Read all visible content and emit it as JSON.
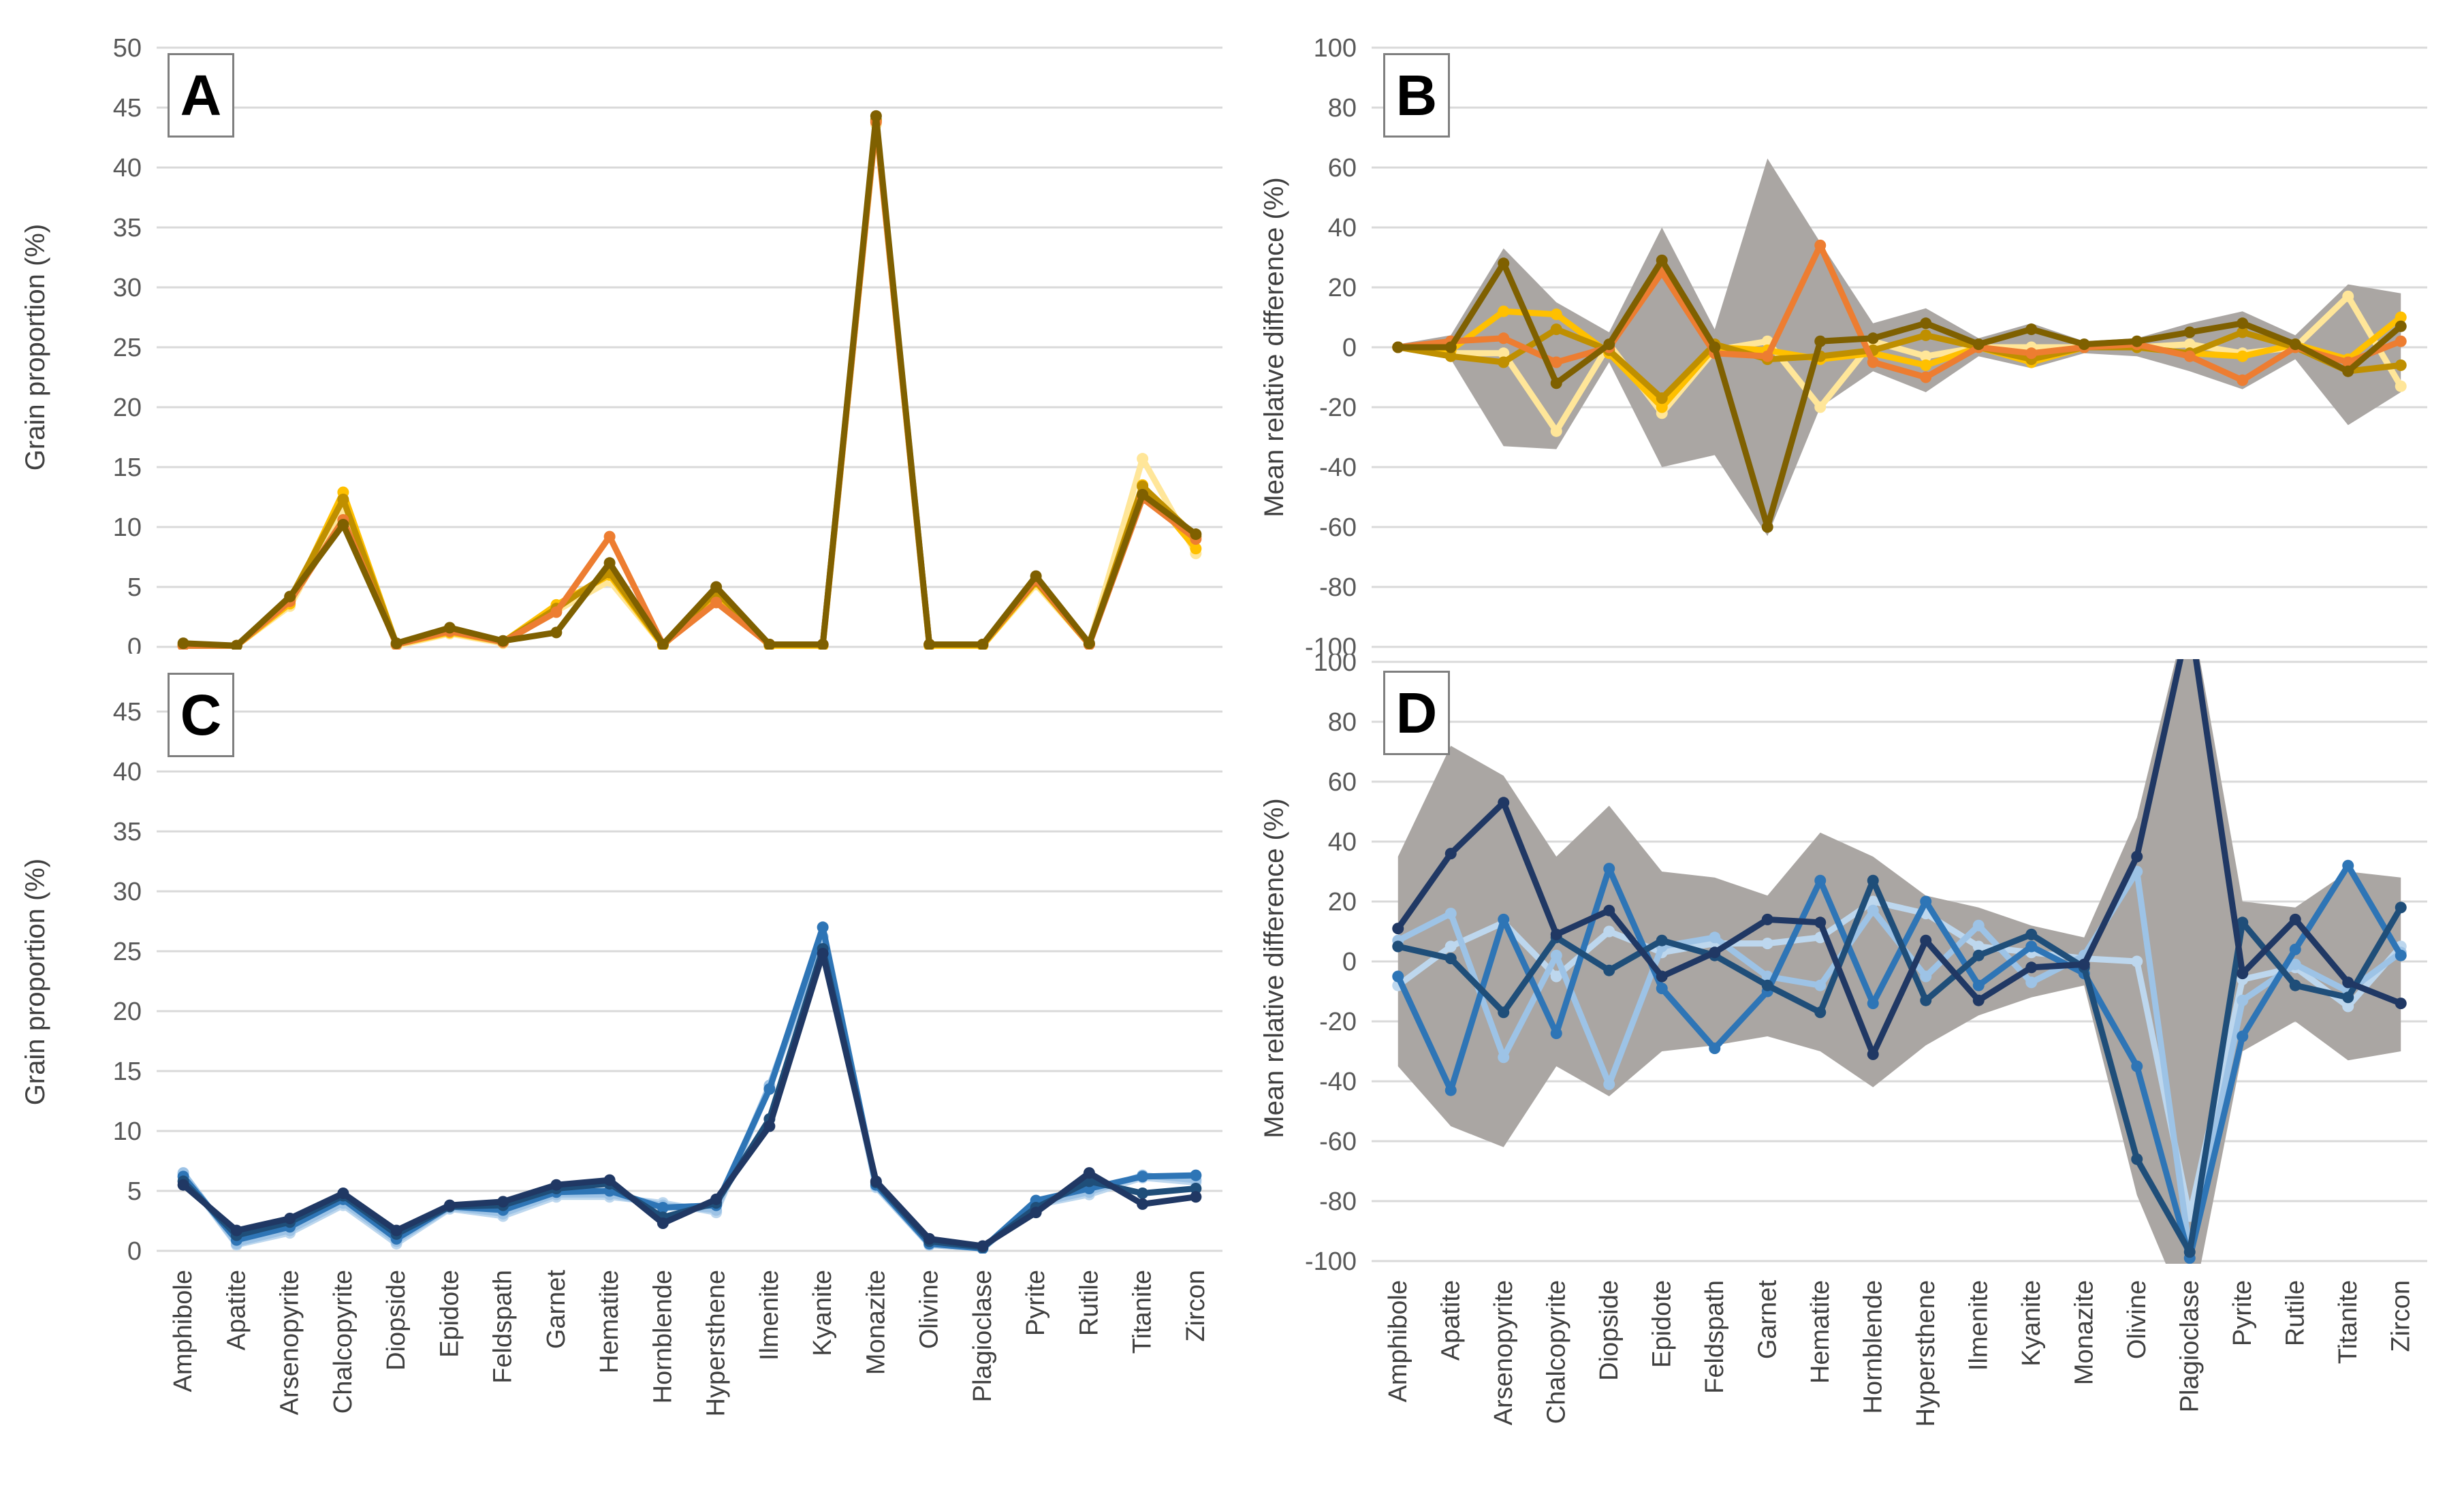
{
  "figure": {
    "background": "#ffffff",
    "gridline_color": "#d9d9d9",
    "tick_label_color": "#595959",
    "category_label_color": "#404040",
    "band_color": "#aaa6a3"
  },
  "categories": [
    "Amphibole",
    "Apatite",
    "Arsenopyrite",
    "Chalcopyrite",
    "Diopside",
    "Epidote",
    "Feldspath",
    "Garnet",
    "Hematite",
    "Hornblende",
    "Hypersthene",
    "Ilmenite",
    "Kyanite",
    "Monazite",
    "Olivine",
    "Plagioclase",
    "Pyrite",
    "Rutile",
    "Titanite",
    "Zircon"
  ],
  "chart_data": [
    {
      "type": "line",
      "panel_label": "A",
      "ylabel": "Grain proportion (%)",
      "ylim": [
        0,
        50
      ],
      "yticks": [
        0,
        5,
        10,
        15,
        20,
        25,
        30,
        35,
        40,
        45,
        50
      ],
      "grid": true,
      "legend_position": "none",
      "series": [
        {
          "name": "pale-yellow",
          "color": "#FFE699",
          "values": [
            0.1,
            0.1,
            3.4,
            11.4,
            0.1,
            1.1,
            0.3,
            3.0,
            5.5,
            0.1,
            4.2,
            0.1,
            0.1,
            43.6,
            0.1,
            0.1,
            5.2,
            0.2,
            15.7,
            7.8
          ]
        },
        {
          "name": "gold",
          "color": "#FFC000",
          "values": [
            0.1,
            0.1,
            3.6,
            12.9,
            0.2,
            1.2,
            0.4,
            3.5,
            6.0,
            0.1,
            4.5,
            0.1,
            0.1,
            43.9,
            0.1,
            0.1,
            5.4,
            0.2,
            13.5,
            8.2
          ]
        },
        {
          "name": "mustard",
          "color": "#BF8F00",
          "values": [
            0.1,
            0.1,
            4.0,
            12.3,
            0.2,
            1.4,
            0.4,
            3.2,
            6.2,
            0.2,
            4.6,
            0.2,
            0.2,
            44.0,
            0.2,
            0.2,
            5.5,
            0.2,
            13.4,
            9.2
          ]
        },
        {
          "name": "orange",
          "color": "#ED7D31",
          "values": [
            0.1,
            0.1,
            3.8,
            10.6,
            0.2,
            1.3,
            0.4,
            2.9,
            9.2,
            0.2,
            3.7,
            0.2,
            0.2,
            43.8,
            0.2,
            0.2,
            5.6,
            0.2,
            12.4,
            9.0
          ]
        },
        {
          "name": "dark-brown",
          "color": "#7F6000",
          "values": [
            0.3,
            0.1,
            4.2,
            10.2,
            0.3,
            1.6,
            0.5,
            1.2,
            7.0,
            0.2,
            5.0,
            0.2,
            0.2,
            44.3,
            0.2,
            0.2,
            5.9,
            0.3,
            12.7,
            9.4
          ]
        }
      ]
    },
    {
      "type": "line",
      "panel_label": "B",
      "ylabel": "Mean relative difference (%)",
      "ylim": [
        -100,
        100
      ],
      "yticks": [
        -100,
        -80,
        -60,
        -40,
        -20,
        0,
        20,
        40,
        60,
        80,
        100
      ],
      "grid": true,
      "legend_position": "none",
      "band": {
        "name": "uncertainty-envelope",
        "upper": [
          1,
          4,
          33,
          15,
          5,
          40,
          6,
          63,
          35,
          8,
          13,
          3,
          8,
          2,
          3,
          8,
          12,
          4,
          21,
          18
        ],
        "lower": [
          -1,
          -4,
          -33,
          -34,
          -5,
          -40,
          -36,
          -63,
          -20,
          -8,
          -15,
          -3,
          -7,
          -2,
          -3,
          -8,
          -14,
          -4,
          -26,
          -15
        ]
      },
      "series": [
        {
          "name": "pale-yellow",
          "color": "#FFE699",
          "values": [
            0,
            -2,
            -2,
            -28,
            1,
            -22,
            -1,
            2,
            -20,
            2,
            -3,
            0,
            0,
            0,
            0,
            1,
            -2,
            0,
            17,
            -13
          ]
        },
        {
          "name": "gold",
          "color": "#FFC000",
          "values": [
            0,
            -1,
            12,
            11,
            -2,
            -20,
            0,
            -1,
            -4,
            -2,
            -6,
            0,
            -5,
            0,
            0,
            -2,
            -3,
            1,
            -4,
            10
          ]
        },
        {
          "name": "mustard",
          "color": "#BF8F00",
          "values": [
            0,
            -3,
            -5,
            6,
            -1,
            -17,
            1,
            -4,
            -3,
            -1,
            4,
            0,
            -4,
            0,
            0,
            -2,
            5,
            0,
            -8,
            -6
          ]
        },
        {
          "name": "orange",
          "color": "#ED7D31",
          "values": [
            0,
            2,
            3,
            -5,
            0,
            25,
            -2,
            -3,
            34,
            -5,
            -10,
            0,
            -2,
            0,
            1,
            -3,
            -11,
            0,
            -5,
            2
          ]
        },
        {
          "name": "dark-brown",
          "color": "#7F6000",
          "values": [
            0,
            0,
            28,
            -12,
            1,
            29,
            0,
            -60,
            2,
            3,
            8,
            1,
            6,
            1,
            2,
            5,
            8,
            1,
            -8,
            7
          ]
        }
      ]
    },
    {
      "type": "line",
      "panel_label": "C",
      "ylabel": "Grain proportion (%)",
      "ylim": [
        0,
        45
      ],
      "yticks": [
        0,
        5,
        10,
        15,
        20,
        25,
        30,
        35,
        40,
        45
      ],
      "grid": true,
      "legend_position": "none",
      "series": [
        {
          "name": "pale-blue",
          "color": "#BDD7EE",
          "values": [
            6.4,
            0.5,
            1.5,
            3.8,
            0.6,
            3.5,
            2.9,
            4.5,
            4.5,
            4.0,
            3.2,
            13.6,
            25.8,
            5.3,
            0.5,
            0.2,
            3.8,
            4.7,
            6.1,
            5.7
          ]
        },
        {
          "name": "light-blue",
          "color": "#9DC3E6",
          "values": [
            6.5,
            0.6,
            1.7,
            4.0,
            0.8,
            3.6,
            3.1,
            4.7,
            4.7,
            3.8,
            3.4,
            13.8,
            26.2,
            5.4,
            0.5,
            0.2,
            3.9,
            4.9,
            6.3,
            5.9
          ]
        },
        {
          "name": "medium-blue",
          "color": "#2E75B6",
          "values": [
            6.2,
            0.9,
            2.0,
            4.3,
            1.0,
            3.7,
            3.4,
            4.9,
            5.0,
            3.6,
            3.8,
            13.5,
            27.0,
            5.5,
            0.6,
            0.2,
            4.2,
            5.2,
            6.2,
            6.3
          ]
        },
        {
          "name": "dark-blue",
          "color": "#1F4E79",
          "values": [
            5.8,
            1.3,
            2.4,
            4.6,
            1.4,
            3.7,
            3.8,
            5.2,
            5.6,
            2.8,
            4.0,
            11.0,
            25.2,
            5.7,
            0.8,
            0.3,
            3.6,
            5.8,
            4.8,
            5.2
          ]
        },
        {
          "name": "navy",
          "color": "#203864",
          "values": [
            5.5,
            1.7,
            2.7,
            4.8,
            1.7,
            3.8,
            4.1,
            5.5,
            5.9,
            2.3,
            4.3,
            10.4,
            24.8,
            5.8,
            1.0,
            0.4,
            3.2,
            6.5,
            3.9,
            4.5
          ]
        }
      ]
    },
    {
      "type": "line",
      "panel_label": "D",
      "ylabel": "Mean relative difference (%)",
      "ylim": [
        -100,
        100
      ],
      "yticks": [
        -100,
        -80,
        -60,
        -40,
        -20,
        0,
        20,
        40,
        60,
        80,
        100
      ],
      "grid": true,
      "legend_position": "none",
      "band": {
        "name": "uncertainty-envelope",
        "upper": [
          35,
          72,
          62,
          35,
          52,
          30,
          28,
          22,
          43,
          35,
          22,
          18,
          12,
          8,
          48,
          120,
          20,
          18,
          30,
          28
        ],
        "lower": [
          -35,
          -55,
          -62,
          -35,
          -45,
          -30,
          -28,
          -25,
          -30,
          -42,
          -28,
          -18,
          -12,
          -8,
          -78,
          -120,
          -30,
          -20,
          -33,
          -30
        ]
      },
      "series": [
        {
          "name": "pale-blue",
          "color": "#BDD7EE",
          "values": [
            -8,
            5,
            13,
            -5,
            10,
            3,
            6,
            6,
            8,
            20,
            16,
            5,
            3,
            1,
            0,
            -85,
            -6,
            -2,
            -15,
            5
          ]
        },
        {
          "name": "light-blue",
          "color": "#9DC3E6",
          "values": [
            7,
            16,
            -32,
            2,
            -41,
            5,
            8,
            -5,
            -8,
            17,
            -5,
            12,
            -7,
            2,
            30,
            -97,
            -13,
            -1,
            -10,
            3
          ]
        },
        {
          "name": "medium-blue",
          "color": "#2E75B6",
          "values": [
            -5,
            -43,
            14,
            -24,
            31,
            -9,
            -29,
            -10,
            27,
            -14,
            20,
            -8,
            5,
            -4,
            -35,
            -99,
            -25,
            4,
            32,
            2
          ]
        },
        {
          "name": "dark-blue",
          "color": "#1F4E79",
          "values": [
            5,
            1,
            -17,
            8,
            -3,
            7,
            2,
            -8,
            -17,
            27,
            -13,
            2,
            9,
            -2,
            -66,
            -97,
            13,
            -8,
            -12,
            18
          ]
        },
        {
          "name": "navy",
          "color": "#203864",
          "values": [
            11,
            36,
            53,
            9,
            17,
            -5,
            3,
            14,
            13,
            -31,
            7,
            -13,
            -2,
            -1,
            35,
            115,
            -4,
            14,
            -7,
            -14
          ]
        }
      ]
    }
  ]
}
